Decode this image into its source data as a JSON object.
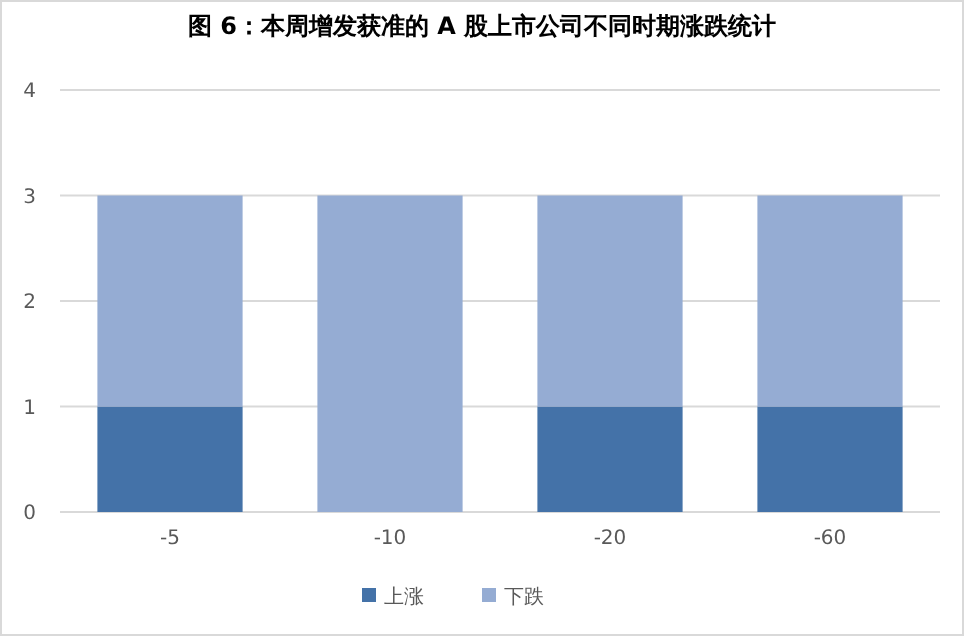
{
  "chart_data": {
    "type": "bar",
    "title": "图 6：本周增发获准的 A 股上市公司不同时期涨跌统计",
    "categories": [
      "-5",
      "-10",
      "-20",
      "-60"
    ],
    "stacked": true,
    "series": [
      {
        "name": "上涨",
        "color": "#4472a8",
        "values": [
          1,
          0,
          1,
          1
        ]
      },
      {
        "name": "下跌",
        "color": "#95acd3",
        "values": [
          2,
          3,
          2,
          2
        ]
      }
    ],
    "ylim": [
      0,
      4
    ],
    "yticks": [
      0,
      1,
      2,
      3,
      4
    ],
    "grid": "y",
    "legend": "bottom"
  }
}
